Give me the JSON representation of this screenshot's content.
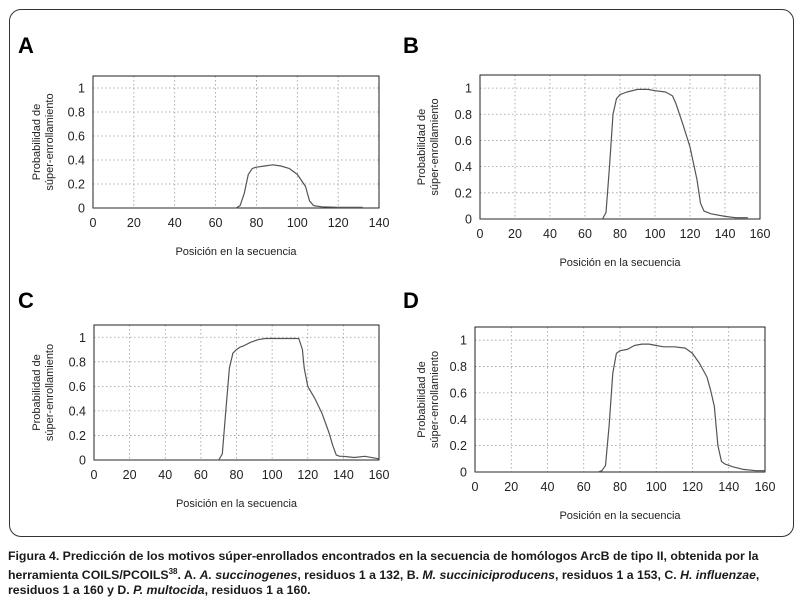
{
  "chart_data": [
    {
      "panel": "A",
      "type": "line",
      "xlabel": "Posición en la secuencia",
      "ylabel": [
        "Probabilidad de",
        "súper-enrollamiento"
      ],
      "xlim": [
        0,
        140
      ],
      "ylim": [
        0,
        1.1
      ],
      "xticks": [
        0,
        20,
        40,
        60,
        80,
        100,
        120,
        140
      ],
      "yticks": [
        0,
        0.2,
        0.4,
        0.6,
        0.8,
        1
      ],
      "grid": true,
      "series": [
        {
          "name": "A. succinogenes",
          "x": [
            0,
            70,
            72,
            74,
            76,
            78,
            80,
            84,
            88,
            92,
            96,
            100,
            104,
            106,
            108,
            112,
            120,
            132
          ],
          "y": [
            0,
            0,
            0.02,
            0.12,
            0.28,
            0.33,
            0.34,
            0.35,
            0.36,
            0.35,
            0.33,
            0.28,
            0.18,
            0.06,
            0.02,
            0.01,
            0.005,
            0.005
          ]
        }
      ]
    },
    {
      "panel": "B",
      "type": "line",
      "xlabel": "Posición en la secuencia",
      "ylabel": [
        "Probabilidad de",
        "súper-enrollamiento"
      ],
      "xlim": [
        0,
        160
      ],
      "ylim": [
        0,
        1.1
      ],
      "xticks": [
        0,
        20,
        40,
        60,
        80,
        100,
        120,
        140,
        160
      ],
      "yticks": [
        0,
        0.2,
        0.4,
        0.6,
        0.8,
        1
      ],
      "grid": true,
      "series": [
        {
          "name": "M. succiniciproducens",
          "x": [
            0,
            70,
            72,
            74,
            76,
            78,
            80,
            84,
            90,
            96,
            100,
            106,
            110,
            112,
            116,
            120,
            124,
            126,
            128,
            132,
            140,
            146,
            153
          ],
          "y": [
            0,
            0,
            0.05,
            0.4,
            0.8,
            0.92,
            0.95,
            0.97,
            0.99,
            0.99,
            0.98,
            0.97,
            0.94,
            0.88,
            0.72,
            0.55,
            0.3,
            0.12,
            0.06,
            0.04,
            0.02,
            0.01,
            0.01
          ]
        }
      ]
    },
    {
      "panel": "C",
      "type": "line",
      "xlabel": "Posición en la secuencia",
      "ylabel": [
        "Probabilidad de",
        "súper-enrollamiento"
      ],
      "xlim": [
        0,
        160
      ],
      "ylim": [
        0,
        1.1
      ],
      "xticks": [
        0,
        20,
        40,
        60,
        80,
        100,
        120,
        140,
        160
      ],
      "yticks": [
        0,
        0.2,
        0.4,
        0.6,
        0.8,
        1
      ],
      "grid": true,
      "series": [
        {
          "name": "H. influenzae",
          "x": [
            0,
            70,
            72,
            74,
            76,
            78,
            80,
            82,
            84,
            88,
            92,
            96,
            100,
            110,
            115,
            117,
            118,
            120,
            124,
            128,
            132,
            134,
            136,
            138,
            140,
            146,
            152,
            160
          ],
          "y": [
            0,
            0,
            0.05,
            0.4,
            0.75,
            0.87,
            0.9,
            0.92,
            0.93,
            0.96,
            0.98,
            0.99,
            0.99,
            0.99,
            0.99,
            0.9,
            0.75,
            0.6,
            0.5,
            0.38,
            0.22,
            0.12,
            0.04,
            0.03,
            0.03,
            0.02,
            0.03,
            0.01
          ]
        }
      ]
    },
    {
      "panel": "D",
      "type": "line",
      "xlabel": "Posición en la secuencia",
      "ylabel": [
        "Probabilidad de",
        "súper-enrollamiento"
      ],
      "xlim": [
        0,
        160
      ],
      "ylim": [
        0,
        1.1
      ],
      "xticks": [
        0,
        20,
        40,
        60,
        80,
        100,
        120,
        140,
        160
      ],
      "yticks": [
        0,
        0.2,
        0.4,
        0.6,
        0.8,
        1
      ],
      "grid": true,
      "series": [
        {
          "name": "P. multocida",
          "x": [
            0,
            68,
            70,
            72,
            74,
            76,
            78,
            80,
            84,
            88,
            92,
            96,
            100,
            104,
            110,
            116,
            120,
            124,
            128,
            130,
            132,
            134,
            136,
            138,
            142,
            148,
            155,
            160
          ],
          "y": [
            0,
            0,
            0.01,
            0.05,
            0.35,
            0.75,
            0.9,
            0.92,
            0.93,
            0.96,
            0.97,
            0.97,
            0.96,
            0.95,
            0.95,
            0.94,
            0.9,
            0.82,
            0.72,
            0.62,
            0.5,
            0.2,
            0.08,
            0.06,
            0.04,
            0.02,
            0.01,
            0.01
          ]
        }
      ]
    }
  ],
  "caption": {
    "figure_label": "Figura 4.",
    "line1_rest": " Predicción de los motivos súper-enrollados encontrados en la secuencia de homólogos ArcB de tipo II, obtenida por la",
    "line2_a": "herramienta COILS/PCOILS",
    "superscript": "38",
    "line2_b": ". A. ",
    "species_a": "A. succinogenes",
    "line2_c": ", residuos 1 a 132, B. ",
    "species_b": "M. succiniciproducens",
    "line2_d": ", residuos 1 a 153, C. ",
    "species_c": "H. influenzae",
    "line2_e": ",",
    "line3_a": "residuos 1 a 160 y  D. ",
    "species_d": "P. multocida",
    "line3_b": ", residuos 1 a 160."
  }
}
